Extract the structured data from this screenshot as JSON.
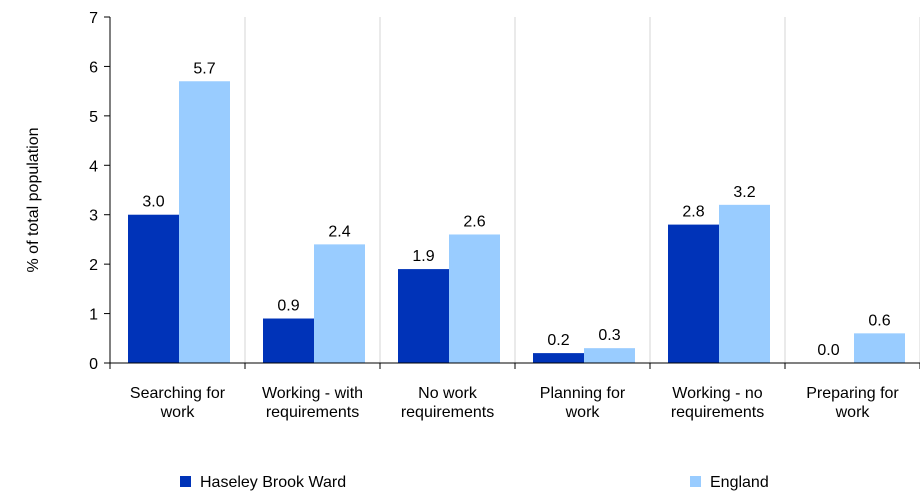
{
  "chart_data": {
    "type": "bar",
    "ylabel": "% of total population",
    "ylim": [
      0,
      7
    ],
    "yticks": [
      "0",
      "1",
      "2",
      "3",
      "4",
      "5",
      "6",
      "7"
    ],
    "categories": [
      [
        "Searching for",
        "work"
      ],
      [
        "Working - with",
        "requirements"
      ],
      [
        "No work",
        "requirements"
      ],
      [
        "Planning for",
        "work"
      ],
      [
        "Working - no",
        "requirements"
      ],
      [
        "Preparing for",
        "work"
      ]
    ],
    "series": [
      {
        "name": "Haseley Brook Ward",
        "color": "#0033b8",
        "values": [
          3.0,
          0.9,
          1.9,
          0.2,
          2.8,
          0.0
        ],
        "labels": [
          "3.0",
          "0.9",
          "1.9",
          "0.2",
          "2.8",
          "0.0"
        ]
      },
      {
        "name": "England",
        "color": "#99ccff",
        "values": [
          5.7,
          2.4,
          2.6,
          0.3,
          3.2,
          0.6
        ],
        "labels": [
          "5.7",
          "2.4",
          "2.6",
          "0.3",
          "3.2",
          "0.6"
        ]
      }
    ],
    "grid": "vertical-category-separators",
    "legend": "bottom"
  }
}
